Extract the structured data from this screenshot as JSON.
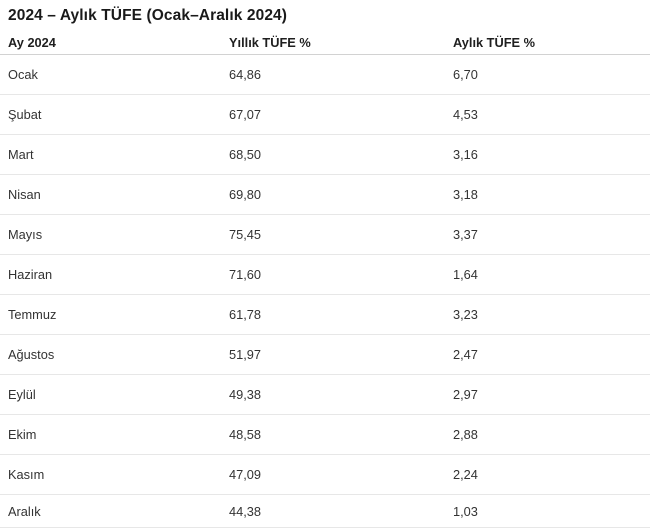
{
  "colors": {
    "background": "#ffffff",
    "title_text": "#1a1a1a",
    "header_text": "#1f1f1f",
    "body_text": "#333333",
    "header_divider": "#d2d2d2",
    "row_divider": "#e7e7e7"
  },
  "chart_data": {
    "type": "table",
    "title": "2024 – Aylık TÜFE (Ocak–Aralık 2024)",
    "columns": [
      "Ay 2024",
      "Yıllık TÜFE %",
      "Aylık TÜFE %"
    ],
    "categories": [
      "Ocak",
      "Şubat",
      "Mart",
      "Nisan",
      "Mayıs",
      "Haziran",
      "Temmuz",
      "Ağustos",
      "Eylül",
      "Ekim",
      "Kasım",
      "Aralık"
    ],
    "series": [
      {
        "name": "Yıllık TÜFE %",
        "values": [
          64.86,
          67.07,
          68.5,
          69.8,
          75.45,
          71.6,
          61.78,
          51.97,
          49.38,
          48.58,
          47.09,
          44.38
        ]
      },
      {
        "name": "Aylık TÜFE %",
        "values": [
          6.7,
          4.53,
          3.16,
          3.18,
          3.37,
          1.64,
          3.23,
          2.47,
          2.97,
          2.88,
          2.24,
          1.03
        ]
      }
    ],
    "rows": [
      [
        "Ocak",
        "64,86",
        "6,70"
      ],
      [
        "Şubat",
        "67,07",
        "4,53"
      ],
      [
        "Mart",
        "68,50",
        "3,16"
      ],
      [
        "Nisan",
        "69,80",
        "3,18"
      ],
      [
        "Mayıs",
        "75,45",
        "3,37"
      ],
      [
        "Haziran",
        "71,60",
        "1,64"
      ],
      [
        "Temmuz",
        "61,78",
        "3,23"
      ],
      [
        "Ağustos",
        "51,97",
        "2,47"
      ],
      [
        "Eylül",
        "49,38",
        "2,97"
      ],
      [
        "Ekim",
        "48,58",
        "2,88"
      ],
      [
        "Kasım",
        "47,09",
        "2,24"
      ],
      [
        "Aralık",
        "44,38",
        "1,03"
      ]
    ]
  }
}
